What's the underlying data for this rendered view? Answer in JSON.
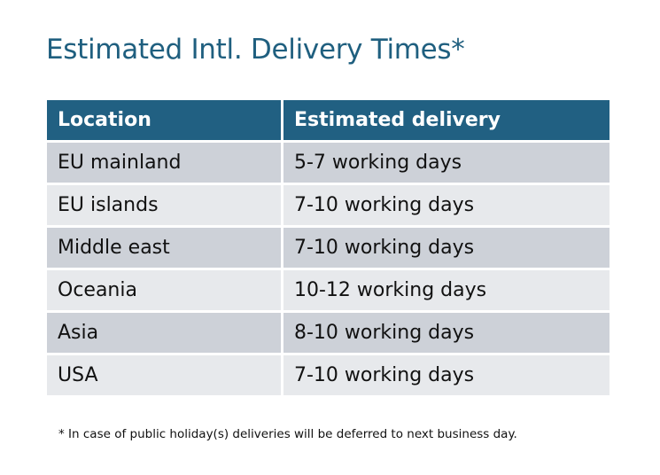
{
  "title": "Estimated Intl. Delivery Times*",
  "colors": {
    "header": "#216082",
    "row_dark": "#cdd1d8",
    "row_light": "#e7e9ec",
    "title": "#1f5f7f"
  },
  "table": {
    "headers": [
      "Location",
      "Estimated delivery"
    ],
    "rows": [
      [
        "EU mainland",
        "5-7 working days"
      ],
      [
        "EU islands",
        "7-10 working days"
      ],
      [
        "Middle east",
        "7-10 working days"
      ],
      [
        "Oceania",
        "10-12 working days"
      ],
      [
        "Asia",
        "8-10 working days"
      ],
      [
        "USA",
        "7-10 working days"
      ]
    ]
  },
  "footnote": "* In case of public holiday(s) deliveries will be deferred to next business day."
}
